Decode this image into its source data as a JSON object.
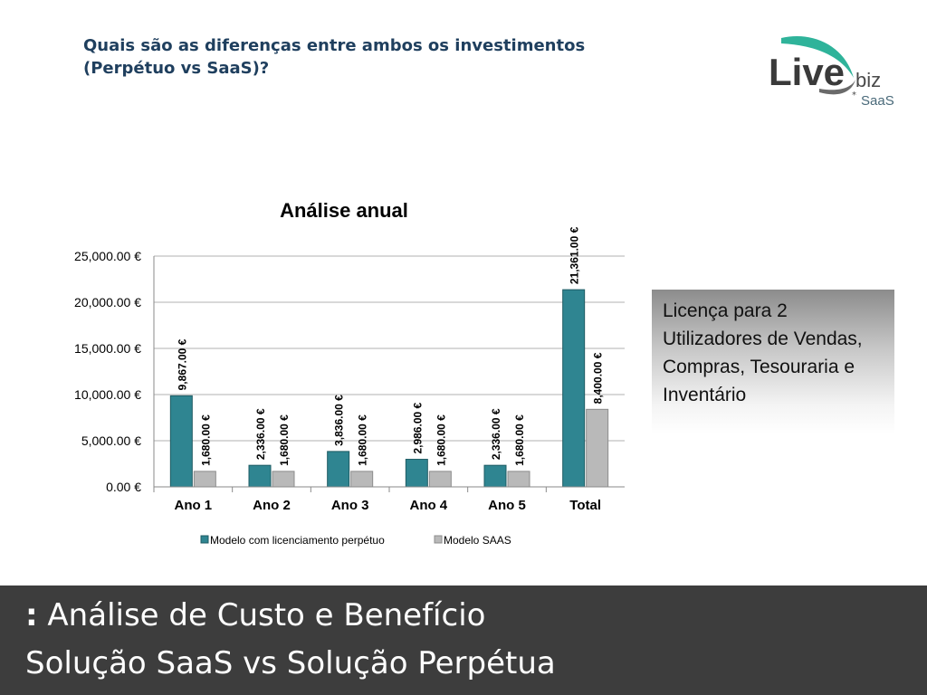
{
  "header": {
    "heading_line1": "Quais são as diferenças entre ambos os investimentos",
    "heading_line2": "(Perpétuo vs SaaS)?"
  },
  "logo": {
    "word": "Live",
    "suffix": "biz",
    "tag": "SaaS",
    "colors": {
      "swoosh": "#2fb39a",
      "word": "#3a3a3a",
      "tag": "#4a6a7a"
    }
  },
  "chart_data": {
    "type": "bar",
    "title": "Análise anual",
    "categories": [
      "Ano 1",
      "Ano 2",
      "Ano 3",
      "Ano 4",
      "Ano 5",
      "Total"
    ],
    "series": [
      {
        "name": "Modelo com licenciamento perpétuo",
        "values": [
          9867,
          2336,
          3836,
          2986,
          2336,
          21361
        ],
        "labels": [
          "9,867.00 €",
          "2,336.00 €",
          "3,836.00 €",
          "2,986.00 €",
          "2,336.00 €",
          "21,361.00 €"
        ],
        "color": "#2f8591"
      },
      {
        "name": "Modelo SAAS",
        "values": [
          1680,
          1680,
          1680,
          1680,
          1680,
          8400
        ],
        "labels": [
          "1,680.00 €",
          "1,680.00 €",
          "1,680.00 €",
          "1,680.00 €",
          "1,680.00 €",
          "8,400.00 €"
        ],
        "color": "#b9b9b9"
      }
    ],
    "ylim": [
      0,
      25000
    ],
    "yticks": [
      0,
      5000,
      10000,
      15000,
      20000,
      25000
    ],
    "ytick_labels": [
      "0.00 €",
      "5,000.00 €",
      "10,000.00 €",
      "15,000.00 €",
      "20,000.00 €",
      "25,000.00 €"
    ],
    "grid": true,
    "legend_position": "bottom"
  },
  "callout": {
    "text": "Licença para 2 Utilizadores de Vendas, Compras, Tesouraria e Inventário"
  },
  "footer": {
    "marker": ":",
    "title": "Análise de Custo e Benefício",
    "subtitle": "Solução SaaS vs Solução Perpétua"
  }
}
